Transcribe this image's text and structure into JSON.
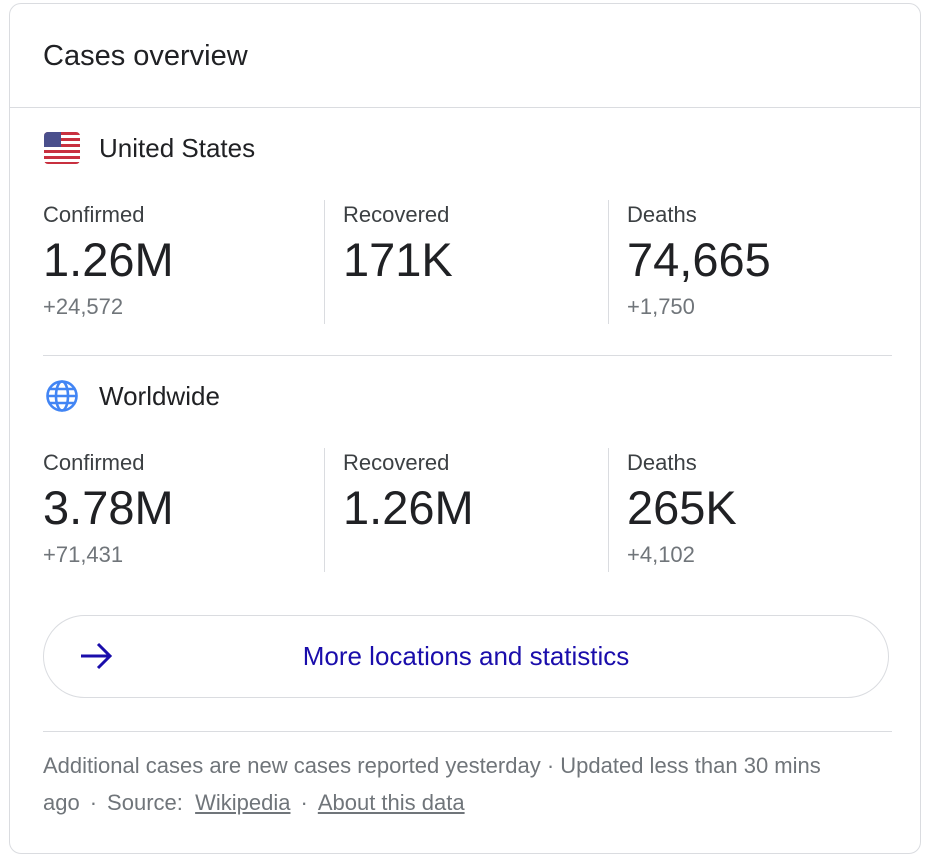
{
  "title": "Cases overview",
  "sections": [
    {
      "name": "United States",
      "icon": "us-flag-icon",
      "stats": [
        {
          "label": "Confirmed",
          "value": "1.26M",
          "delta": "+24,572"
        },
        {
          "label": "Recovered",
          "value": "171K",
          "delta": ""
        },
        {
          "label": "Deaths",
          "value": "74,665",
          "delta": "+1,750"
        }
      ]
    },
    {
      "name": "Worldwide",
      "icon": "globe-icon",
      "stats": [
        {
          "label": "Confirmed",
          "value": "3.78M",
          "delta": "+71,431"
        },
        {
          "label": "Recovered",
          "value": "1.26M",
          "delta": ""
        },
        {
          "label": "Deaths",
          "value": "265K",
          "delta": "+4,102"
        }
      ]
    }
  ],
  "more_button": {
    "label": "More locations and statistics",
    "icon": "arrow-right-icon"
  },
  "footer": {
    "note": "Additional cases are new cases reported yesterday · Updated less than 30 mins ago",
    "source_label": "Source:",
    "source_link": "Wikipedia",
    "about_link": "About this data",
    "dot": "·"
  },
  "colors": {
    "link": "#1a0dab",
    "arrow": "#1a0dab",
    "globe": "#4285f4",
    "muted": "#70757a"
  }
}
